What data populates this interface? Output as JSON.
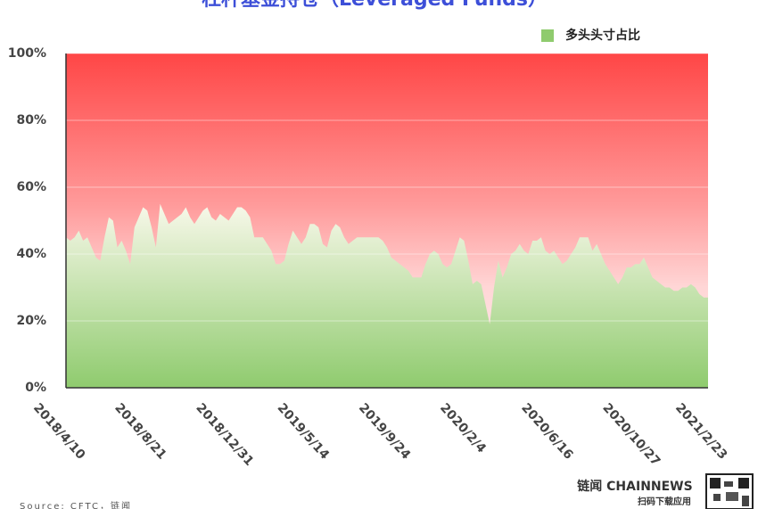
{
  "chart_data": {
    "type": "area",
    "title": "杠杆基金持仓（Leveraged Funds）",
    "categories": [
      "2018/4/10",
      null,
      null,
      null,
      null,
      null,
      null,
      null,
      null,
      null,
      null,
      null,
      null,
      null,
      null,
      null,
      null,
      null,
      null,
      "2018/8/21",
      null,
      null,
      null,
      null,
      null,
      null,
      null,
      null,
      null,
      null,
      null,
      null,
      null,
      null,
      null,
      null,
      null,
      null,
      "2018/12/31",
      null,
      null,
      null,
      null,
      null,
      null,
      null,
      null,
      null,
      null,
      null,
      null,
      null,
      null,
      null,
      null,
      null,
      null,
      "2019/5/14",
      null,
      null,
      null,
      null,
      null,
      null,
      null,
      null,
      null,
      null,
      null,
      null,
      null,
      null,
      null,
      null,
      null,
      null,
      "2019/9/24",
      null,
      null,
      null,
      null,
      null,
      null,
      null,
      null,
      null,
      null,
      null,
      null,
      null,
      null,
      null,
      null,
      null,
      null,
      "2020/2/4",
      null,
      null,
      null,
      null,
      null,
      null,
      null,
      null,
      null,
      null,
      null,
      null,
      null,
      null,
      null,
      null,
      null,
      null,
      "2020/6/16",
      null,
      null,
      null,
      null,
      null,
      null,
      null,
      null,
      null,
      null,
      null,
      null,
      null,
      null,
      null,
      null,
      null,
      null,
      "2020/10/27",
      null,
      null,
      null,
      null,
      null,
      null,
      null,
      null,
      null,
      null,
      null,
      null,
      null,
      null,
      null,
      null,
      "2021/2/23"
    ],
    "series": [
      {
        "name": "多头头寸占比",
        "color": "#8fcb6e",
        "values": [
          45,
          44,
          45,
          47,
          44,
          45,
          42,
          39,
          38,
          45,
          51,
          50,
          42,
          44,
          41,
          37,
          48,
          51,
          54,
          53,
          48,
          42,
          55,
          52,
          49,
          50,
          51,
          52,
          54,
          51,
          49,
          51,
          53,
          54,
          51,
          50,
          52,
          51,
          50,
          52,
          54,
          54,
          53,
          51,
          45,
          45,
          45,
          43,
          41,
          37,
          37,
          38,
          43,
          47,
          45,
          43,
          45,
          49,
          49,
          48,
          43,
          42,
          47,
          49,
          48,
          45,
          43,
          44,
          45,
          45,
          45,
          45,
          45,
          45,
          44,
          42,
          39,
          38,
          37,
          36,
          35,
          33,
          33,
          33,
          37,
          40,
          41,
          40,
          37,
          36,
          37,
          41,
          45,
          44,
          38,
          31,
          32,
          31,
          25,
          19,
          30,
          38,
          33,
          36,
          40,
          41,
          43,
          41,
          40,
          44,
          44,
          45,
          41,
          40,
          41,
          39,
          37,
          38,
          40,
          42,
          45,
          45,
          45,
          41,
          43,
          40,
          37,
          35,
          33,
          31,
          33,
          36,
          36,
          37,
          37,
          39,
          36,
          33,
          32,
          31,
          30,
          30,
          29,
          29,
          30,
          30,
          31,
          30,
          28,
          27,
          27
        ]
      }
    ],
    "ylim": [
      0,
      100
    ],
    "yticks": [
      {
        "value": 0,
        "label": "0%"
      },
      {
        "value": 20,
        "label": "20%"
      },
      {
        "value": 40,
        "label": "40%"
      },
      {
        "value": 60,
        "label": "60%"
      },
      {
        "value": 80,
        "label": "80%"
      },
      {
        "value": 100,
        "label": "100%"
      }
    ],
    "grid": true,
    "legend": "top-right"
  },
  "footer": {
    "source": "Source: CFTC，链闻",
    "brand": "链闻 CHAINNEWS",
    "brand_sub": "扫码下载应用"
  }
}
